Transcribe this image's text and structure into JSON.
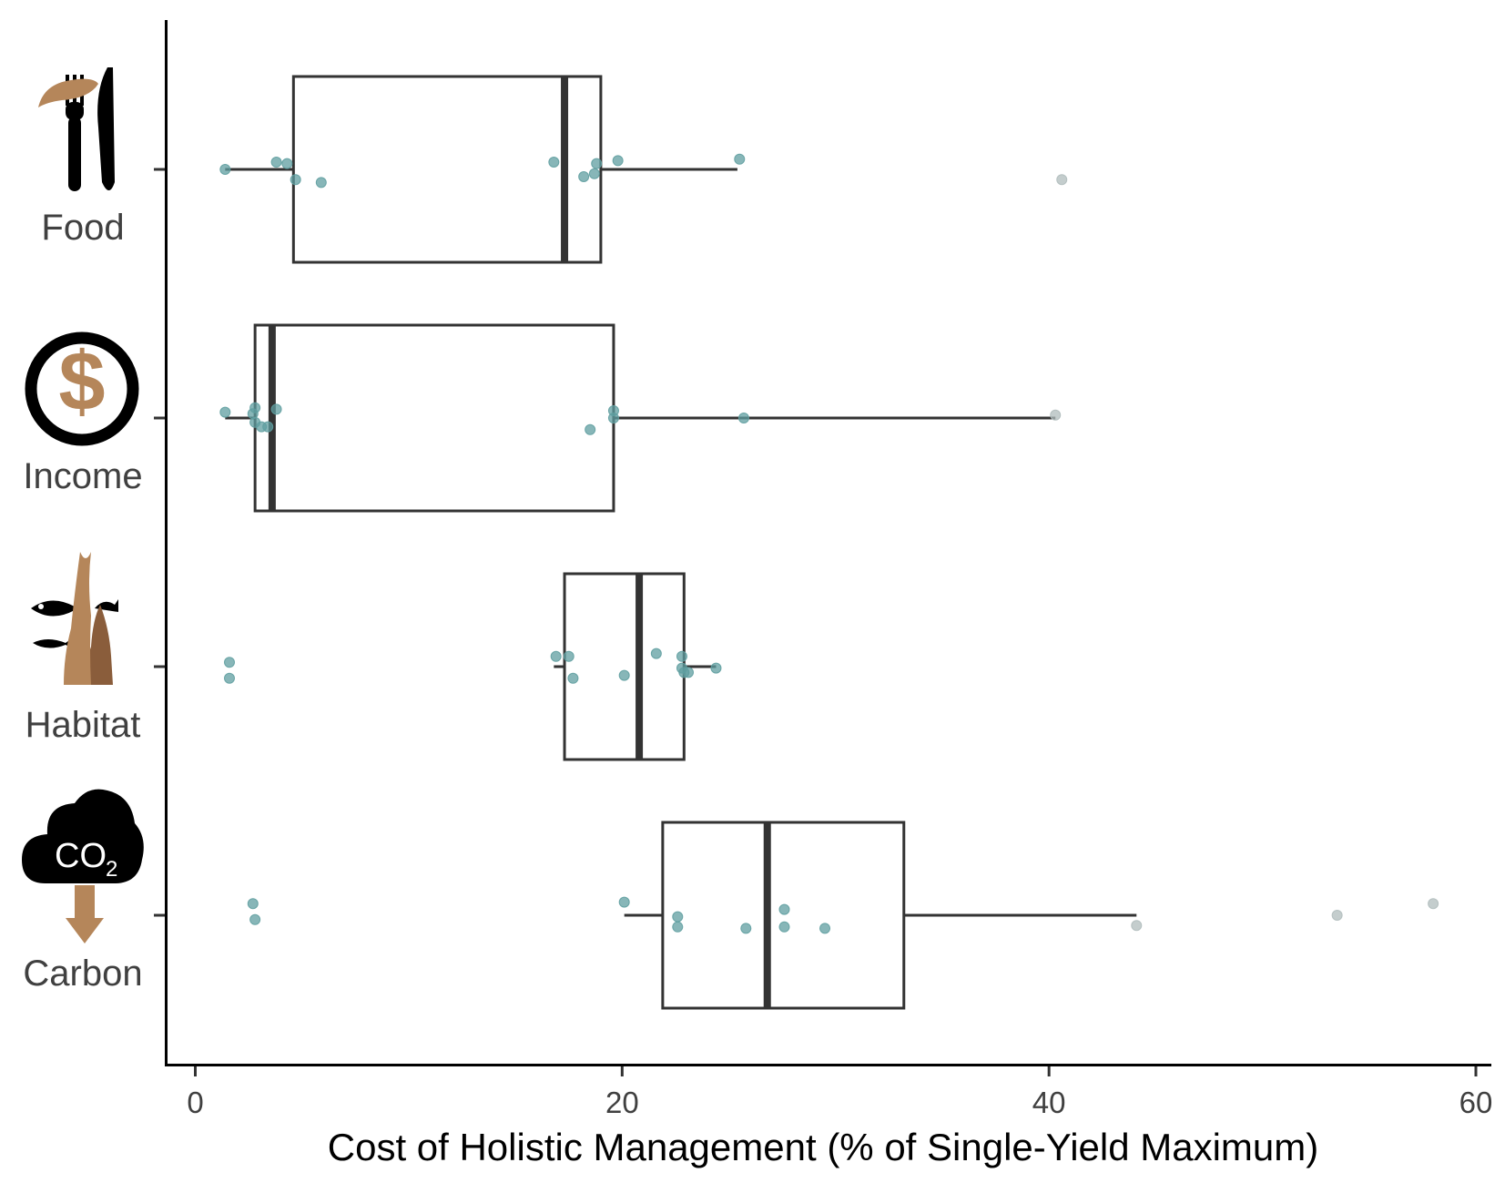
{
  "chart_data": {
    "type": "boxplot",
    "orientation": "horizontal",
    "xlabel": "Cost of Holistic Management (% of Single-Yield Maximum)",
    "ylabel": "",
    "xlim": [
      -1.4,
      60.8
    ],
    "x_ticks": [
      0,
      20,
      40,
      60
    ],
    "grid": false,
    "legend": "none",
    "colors": {
      "axis": "#000000",
      "box": "#333333",
      "point": "#5f9ea0",
      "point_far": "#b0bcbc",
      "icon_brown": "#b5865a",
      "icon_dark": "#000000"
    },
    "categories": [
      {
        "label": "Food",
        "icon": "fork-knife-icon",
        "box": {
          "whisker_low": 1.4,
          "q1": 4.6,
          "median": 17.3,
          "q3": 19.0,
          "whisker_high": 25.4
        },
        "points": [
          [
            1.4,
            0.0
          ],
          [
            3.8,
            -0.05
          ],
          [
            4.3,
            -0.04
          ],
          [
            4.7,
            0.07
          ],
          [
            5.9,
            0.09
          ],
          [
            16.8,
            -0.05
          ],
          [
            18.2,
            0.05
          ],
          [
            18.7,
            0.03
          ],
          [
            18.8,
            -0.04
          ],
          [
            19.8,
            -0.06
          ],
          [
            25.5,
            -0.07
          ],
          [
            40.6,
            0.07
          ]
        ]
      },
      {
        "label": "Income",
        "icon": "dollar-coin-icon",
        "box": {
          "whisker_low": 1.4,
          "q1": 2.8,
          "median": 3.6,
          "q3": 19.6,
          "whisker_high": 40.3
        },
        "points": [
          [
            1.4,
            -0.04
          ],
          [
            2.7,
            -0.03
          ],
          [
            2.8,
            -0.07
          ],
          [
            2.8,
            0.03
          ],
          [
            3.1,
            0.06
          ],
          [
            3.4,
            0.06
          ],
          [
            3.8,
            -0.06
          ],
          [
            18.5,
            0.08
          ],
          [
            19.6,
            -0.05
          ],
          [
            19.6,
            0.0
          ],
          [
            25.7,
            0.0
          ],
          [
            40.3,
            -0.02
          ]
        ]
      },
      {
        "label": "Habitat",
        "icon": "fish-kelp-icon",
        "box": {
          "whisker_low": 16.8,
          "q1": 17.3,
          "median": 20.8,
          "q3": 22.9,
          "whisker_high": 24.4
        },
        "points": [
          [
            1.6,
            -0.03
          ],
          [
            1.6,
            0.08
          ],
          [
            16.9,
            -0.07
          ],
          [
            17.5,
            -0.07
          ],
          [
            17.7,
            0.08
          ],
          [
            20.1,
            0.06
          ],
          [
            21.6,
            -0.09
          ],
          [
            22.8,
            -0.07
          ],
          [
            22.8,
            0.01
          ],
          [
            22.9,
            0.04
          ],
          [
            23.1,
            0.04
          ],
          [
            24.4,
            0.01
          ]
        ]
      },
      {
        "label": "Carbon",
        "icon": "co2-cloud-icon",
        "box": {
          "whisker_low": 20.1,
          "q1": 21.9,
          "median": 26.8,
          "q3": 33.2,
          "whisker_high": 44.1
        },
        "points": [
          [
            2.7,
            -0.08
          ],
          [
            2.8,
            0.03
          ],
          [
            20.1,
            -0.09
          ],
          [
            22.6,
            0.01
          ],
          [
            22.6,
            0.08
          ],
          [
            25.8,
            0.09
          ],
          [
            27.6,
            -0.04
          ],
          [
            27.6,
            0.08
          ],
          [
            29.5,
            0.09
          ],
          [
            44.1,
            0.07
          ],
          [
            53.5,
            0.0
          ],
          [
            58.0,
            -0.08
          ]
        ]
      }
    ]
  },
  "icons": {
    "co2_text": "CO",
    "co2_subscript": "2",
    "dollar_glyph": "$"
  }
}
